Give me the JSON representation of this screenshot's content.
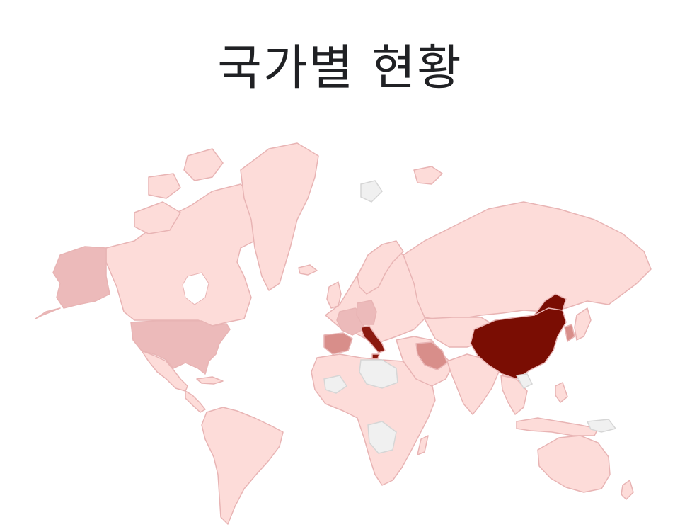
{
  "title": "국가별 현황",
  "colors": {
    "low": "#fddcd9",
    "mid_low": "#ecbaba",
    "mid": "#d88e8a",
    "high": "#8b1a10",
    "max": "#7a0d03",
    "no_data": "#f0f0f0",
    "border": "#e8b4b4"
  },
  "regions": [
    {
      "name": "china",
      "level": "max"
    },
    {
      "name": "italy",
      "level": "high"
    },
    {
      "name": "iran",
      "level": "mid"
    },
    {
      "name": "spain",
      "level": "mid"
    },
    {
      "name": "germany",
      "level": "mid_low"
    },
    {
      "name": "france",
      "level": "mid_low"
    },
    {
      "name": "united-states",
      "level": "mid_low"
    },
    {
      "name": "alaska",
      "level": "mid_low"
    },
    {
      "name": "south-korea",
      "level": "mid"
    }
  ]
}
